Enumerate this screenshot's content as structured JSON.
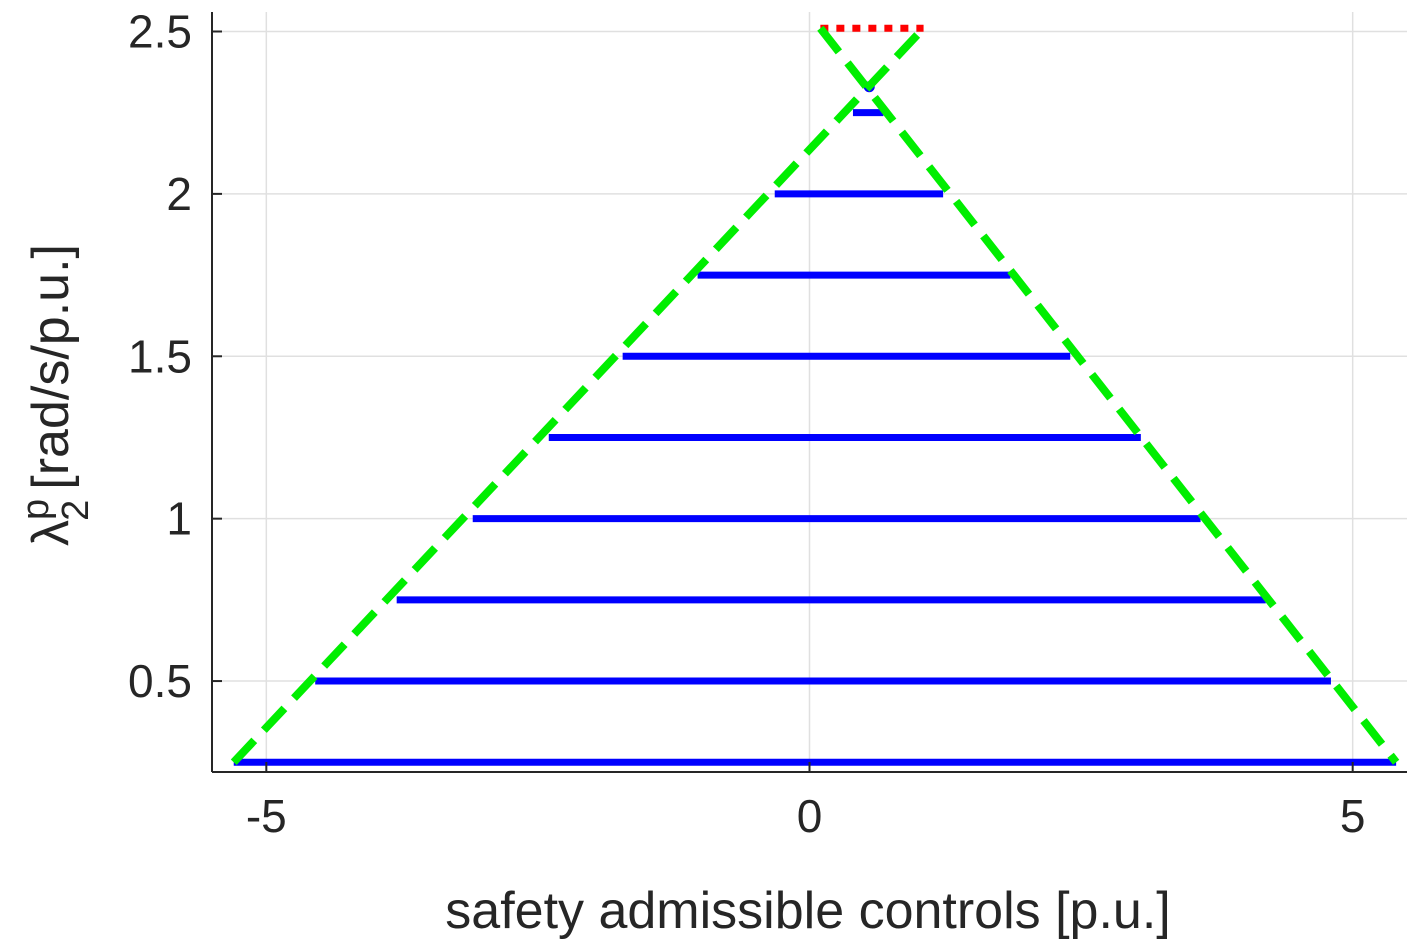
{
  "chart_data": {
    "type": "line",
    "title": "",
    "xlabel": "safety admissible controls [p.u.]",
    "ylabel": {
      "symbol": "λ",
      "superscript": "p",
      "subscript": "2",
      "unit": "[rad/s/p.u.]"
    },
    "xlim": [
      -5.5,
      5.5
    ],
    "ylim": [
      0.22,
      2.56
    ],
    "xticks": [
      -5,
      0,
      5
    ],
    "xtick_labels": [
      "-5",
      "0",
      "5"
    ],
    "yticks": [
      0.5,
      1,
      1.5,
      2,
      2.5
    ],
    "ytick_labels": [
      "0.5",
      "1",
      "1.5",
      "2",
      "2.5"
    ],
    "grid": true,
    "legend": "none",
    "colors": {
      "intervals": "#0000ff",
      "bounds": "#00ee00",
      "infeasible": "#ff0000",
      "grid": "#e0e0e0",
      "axis": "#262626"
    },
    "admissible_intervals": [
      {
        "y": 0.25,
        "x_min": -5.3,
        "x_max": 5.4
      },
      {
        "y": 0.5,
        "x_min": -4.55,
        "x_max": 4.8
      },
      {
        "y": 0.75,
        "x_min": -3.8,
        "x_max": 4.2
      },
      {
        "y": 1.0,
        "x_min": -3.1,
        "x_max": 3.6
      },
      {
        "y": 1.25,
        "x_min": -2.4,
        "x_max": 3.05
      },
      {
        "y": 1.5,
        "x_min": -1.72,
        "x_max": 2.4
      },
      {
        "y": 1.75,
        "x_min": -1.03,
        "x_max": 1.85
      },
      {
        "y": 2.0,
        "x_min": -0.32,
        "x_max": 1.23
      },
      {
        "y": 2.25,
        "x_min": 0.4,
        "x_max": 0.68
      }
    ],
    "admissible_point": {
      "x": 0.55,
      "y": 2.33
    },
    "bound_lines": [
      {
        "name": "lower",
        "style": "dashed",
        "points": [
          [
            -5.3,
            0.25
          ],
          [
            1.05,
            2.51
          ]
        ]
      },
      {
        "name": "upper",
        "style": "dashed",
        "points": [
          [
            0.1,
            2.51
          ],
          [
            5.4,
            0.25
          ]
        ]
      }
    ],
    "infeasible_segment": {
      "style": "dotted",
      "y": 2.51,
      "x_min": 0.1,
      "x_max": 1.05
    }
  }
}
